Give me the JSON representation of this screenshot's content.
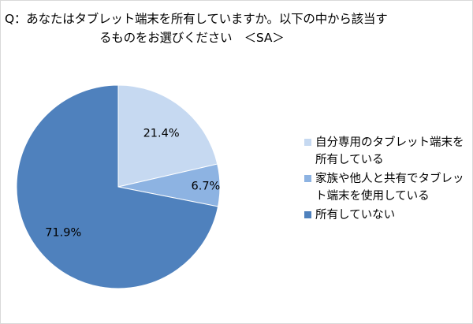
{
  "title": {
    "line1": "Q：あなたはタブレット端末を所有していますか。以下の中から該当す",
    "line2": "るものをお選びください　＜SA＞"
  },
  "chart_data": {
    "type": "pie",
    "categories": [
      "自分専用のタブレット端末を所有している",
      "家族や他人と共有でタブレット端末を使用している",
      "所有していない"
    ],
    "values": [
      21.4,
      6.7,
      71.9
    ],
    "data_labels": [
      "21.4%",
      "6.7%",
      "71.9%"
    ],
    "colors": [
      "#c6d9f1",
      "#8db3e2",
      "#4f81bd"
    ],
    "legend_position": "right",
    "start_angle": "top",
    "direction": "clockwise"
  },
  "legend": {
    "items": [
      {
        "label": "自分専用のタブレット端末を所有している",
        "color": "#c6d9f1"
      },
      {
        "label": "家族や他人と共有でタブレット端末を使用している",
        "color": "#8db3e2"
      },
      {
        "label": "所有していない",
        "color": "#4f81bd"
      }
    ]
  }
}
